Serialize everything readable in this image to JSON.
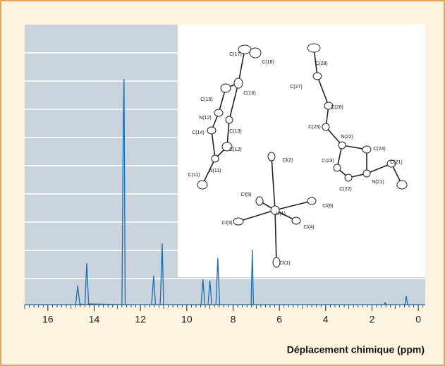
{
  "chart_data": {
    "type": "line",
    "x_label": "Déplacement chimique (ppm)",
    "xlim": [
      17.0,
      -0.3
    ],
    "xticks": [
      16,
      14,
      12,
      10,
      8,
      6,
      4,
      2,
      0
    ],
    "ylim": [
      0,
      400
    ],
    "grid": true,
    "series": [
      {
        "color": "#1a6db0",
        "x": [
          17.0,
          14.8,
          14.71,
          14.62,
          14.4,
          14.32,
          14.24,
          12.8,
          12.74,
          12.71,
          12.66,
          11.52,
          11.43,
          11.35,
          11.15,
          11.1,
          11.06,
          11.0,
          9.38,
          9.3,
          9.22,
          9.08,
          9.0,
          8.92,
          8.74,
          8.66,
          8.58,
          7.22,
          7.17,
          7.12,
          1.48,
          1.43,
          1.38,
          0.58,
          0.52,
          0.46,
          -0.3
        ],
        "values": [
          0,
          0,
          27,
          1,
          0,
          59,
          1,
          0,
          265,
          322,
          0,
          0,
          41,
          0,
          0,
          45,
          87,
          0,
          0,
          36,
          0,
          0,
          34,
          0,
          0,
          66,
          0,
          0,
          78,
          0,
          0,
          3,
          0,
          0,
          12,
          0,
          0
        ]
      }
    ],
    "inset_labels": [
      "C(17)",
      "C(18)",
      "C(16)",
      "C(15)",
      "N(12)",
      "C(14)",
      "C(13)",
      "C(12)",
      "N(11)",
      "C(11)",
      "C(28)",
      "C(27)",
      "C(26)",
      "C(25)",
      "N(22)",
      "C(24)",
      "C(23)",
      "C(21)",
      "N(21)",
      "C(22)",
      "Cl(2)",
      "Cl(5)",
      "Cl(6)",
      "Cl(3)",
      "U(1)",
      "Cl(4)",
      "Cl(1)"
    ]
  }
}
